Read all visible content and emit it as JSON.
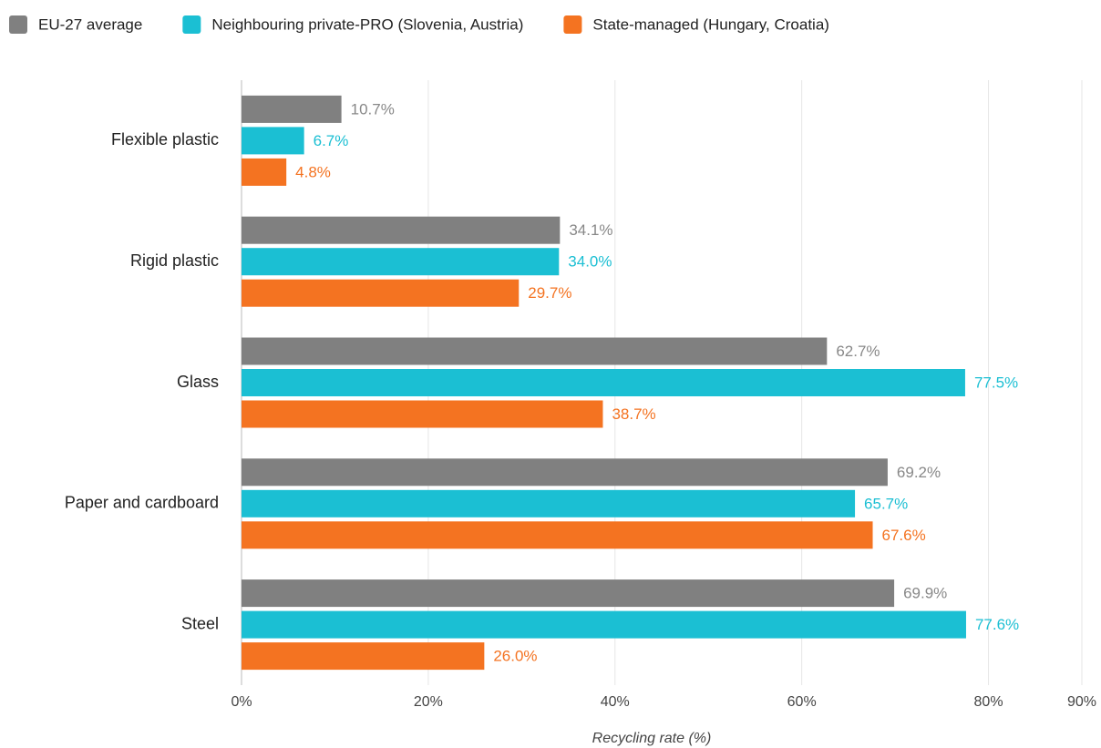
{
  "chart_data": {
    "type": "hbar",
    "x_label": "Recycling rate (%)",
    "categories": [
      "Flexible plastic",
      "Rigid plastic",
      "Glass",
      "Paper and cardboard",
      "Steel"
    ],
    "series": [
      {
        "name": "EU-27 average",
        "color": "#808080",
        "label_color": "#888888",
        "values": [
          10.7,
          34.1,
          62.7,
          69.2,
          69.9
        ],
        "value_labels": [
          "10.7%",
          "34.1%",
          "62.7%",
          "69.2%",
          "69.9%"
        ]
      },
      {
        "name": "Neighbouring private-PRO (Slovenia, Austria)",
        "color": "#1bbfd3",
        "label_color": "#1bbfd3",
        "values": [
          6.7,
          34.0,
          77.5,
          65.7,
          77.6
        ],
        "value_labels": [
          "6.7%",
          "34.0%",
          "77.5%",
          "65.7%",
          "77.6%"
        ]
      },
      {
        "name": "State-managed (Hungary, Croatia)",
        "color": "#f47321",
        "label_color": "#f47321",
        "values": [
          4.8,
          29.7,
          38.7,
          67.6,
          26.0
        ],
        "value_labels": [
          "4.8%",
          "29.7%",
          "38.7%",
          "67.6%",
          "26.0%"
        ]
      }
    ],
    "xlim": [
      0,
      90
    ],
    "xticks": [
      {
        "value": 0,
        "label": "0%"
      },
      {
        "value": 20,
        "label": "20%"
      },
      {
        "value": 40,
        "label": "40%"
      },
      {
        "value": 60,
        "label": "60%"
      },
      {
        "value": 80,
        "label": "80%"
      },
      {
        "value": 90,
        "label": "90%"
      }
    ],
    "grid": true,
    "legend": "top"
  }
}
